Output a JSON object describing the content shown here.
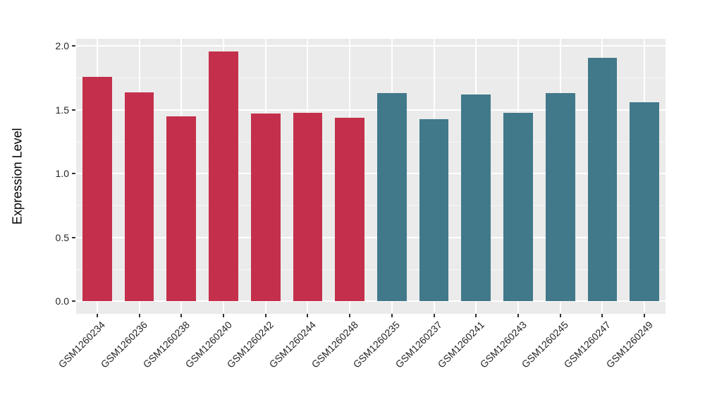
{
  "chart_data": {
    "type": "bar",
    "title": "",
    "xlabel": "",
    "ylabel": "Expression Level",
    "ylim": [
      0,
      2
    ],
    "ytick_values": [
      0,
      0.5,
      1,
      1.5,
      2
    ],
    "ytick_labels": [
      "0.0",
      "0.5",
      "1.0",
      "1.5",
      "2.0"
    ],
    "yminor_values": [
      0.25,
      0.75,
      1.25,
      1.75
    ],
    "grid": "on",
    "legend_position": "none",
    "bar_width_fraction": 0.7,
    "categories": [
      "GSM1260234",
      "GSM1260236",
      "GSM1260238",
      "GSM1260240",
      "GSM1260242",
      "GSM1260244",
      "GSM1260248",
      "GSM1260235",
      "GSM1260237",
      "GSM1260241",
      "GSM1260243",
      "GSM1260245",
      "GSM1260247",
      "GSM1260249"
    ],
    "values": [
      1.76,
      1.64,
      1.45,
      1.96,
      1.47,
      1.48,
      1.44,
      1.63,
      1.43,
      1.62,
      1.48,
      1.63,
      1.91,
      1.56
    ],
    "bar_colors": [
      "#C4304B",
      "#C4304B",
      "#C4304B",
      "#C4304B",
      "#C4304B",
      "#C4304B",
      "#C4304B",
      "#41798A",
      "#41798A",
      "#41798A",
      "#41798A",
      "#41798A",
      "#41798A",
      "#41798A"
    ],
    "groups": [
      {
        "name": "left-group",
        "color": "#C4304B",
        "samples": [
          "GSM1260234",
          "GSM1260236",
          "GSM1260238",
          "GSM1260240",
          "GSM1260242",
          "GSM1260244",
          "GSM1260248"
        ]
      },
      {
        "name": "right-group",
        "color": "#41798A",
        "samples": [
          "GSM1260235",
          "GSM1260237",
          "GSM1260241",
          "GSM1260243",
          "GSM1260245",
          "GSM1260247",
          "GSM1260249"
        ]
      }
    ],
    "colors": {
      "figure_background": "#FFFFFF",
      "panel_background": "#EBEBEB",
      "grid_major": "#FFFFFF",
      "grid_minor": "rgba(255,255,255,0.6)",
      "axis_text": "#262626",
      "axis_title": "#000000",
      "tick_mark": "#333333"
    }
  }
}
